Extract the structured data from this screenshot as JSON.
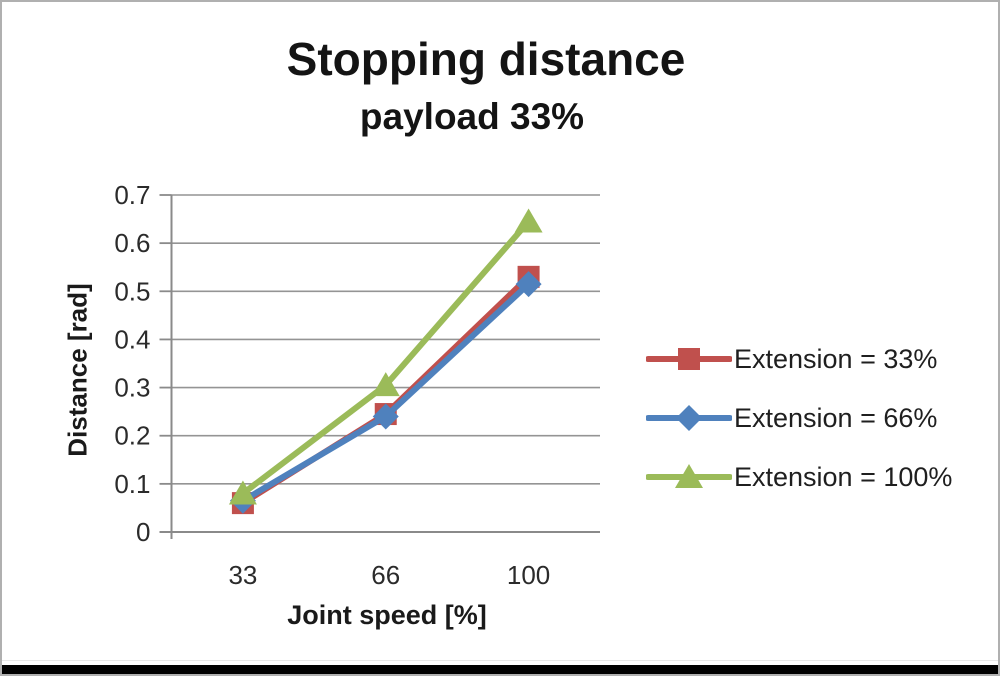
{
  "chart_data": {
    "type": "line",
    "title": "Stopping distance",
    "subtitle": "payload 33%",
    "xlabel": "Joint speed [%]",
    "ylabel": "Distance [rad]",
    "categories": [
      "33",
      "66",
      "100"
    ],
    "yticks": [
      "0",
      "0.1",
      "0.2",
      "0.3",
      "0.4",
      "0.5",
      "0.6",
      "0.7"
    ],
    "ylim": [
      0,
      0.7
    ],
    "grid": true,
    "legend_position": "right",
    "series": [
      {
        "name": "Extension = 33%",
        "values": [
          0.06,
          0.245,
          0.53
        ],
        "color": "#C0504D",
        "marker": "square"
      },
      {
        "name": "Extension = 66%",
        "values": [
          0.065,
          0.24,
          0.515
        ],
        "color": "#4F81BD",
        "marker": "diamond"
      },
      {
        "name": "Extension = 100%",
        "values": [
          0.08,
          0.305,
          0.645
        ],
        "color": "#9BBB59",
        "marker": "triangle"
      }
    ],
    "colors": {
      "gridline": "#949494",
      "axis": "#8a8a8a",
      "tick_text": "#2b2b2b"
    }
  }
}
